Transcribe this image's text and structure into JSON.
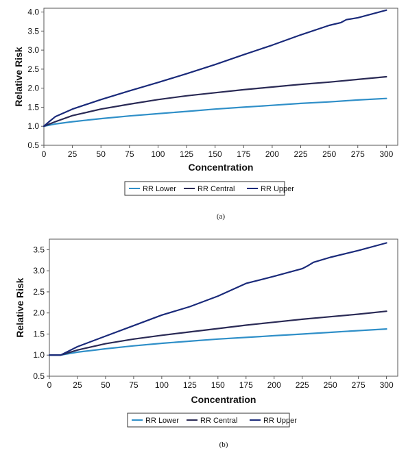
{
  "chart_data": [
    {
      "type": "line",
      "caption": "(a)",
      "xlabel": "Concentration",
      "ylabel": "Relative Risk",
      "xlim": [
        0,
        310
      ],
      "ylim": [
        0.5,
        4.1
      ],
      "xticks": [
        0,
        25,
        50,
        75,
        100,
        125,
        150,
        175,
        200,
        225,
        250,
        275,
        300
      ],
      "yticks": [
        "0.5",
        "1.0",
        "1.5",
        "2.0",
        "2.5",
        "3.0",
        "3.5",
        "4.0"
      ],
      "grid": false,
      "legend_position": "bottom",
      "series": [
        {
          "name": "RR Lower",
          "color": "#2f8fc8",
          "x": [
            0,
            10,
            25,
            50,
            75,
            100,
            125,
            150,
            175,
            200,
            225,
            250,
            275,
            300
          ],
          "y": [
            1.0,
            1.06,
            1.12,
            1.2,
            1.27,
            1.33,
            1.39,
            1.45,
            1.5,
            1.55,
            1.6,
            1.64,
            1.69,
            1.73
          ]
        },
        {
          "name": "RR Central",
          "color": "#2a2a55",
          "x": [
            0,
            10,
            25,
            50,
            75,
            100,
            125,
            150,
            175,
            200,
            225,
            250,
            275,
            300
          ],
          "y": [
            1.0,
            1.12,
            1.28,
            1.45,
            1.58,
            1.7,
            1.8,
            1.88,
            1.96,
            2.03,
            2.1,
            2.16,
            2.23,
            2.3
          ]
        },
        {
          "name": "RR Upper",
          "color": "#1a2a7a",
          "x": [
            0,
            5,
            10,
            25,
            50,
            75,
            100,
            125,
            150,
            175,
            200,
            225,
            250,
            260,
            265,
            275,
            300
          ],
          "y": [
            1.0,
            1.13,
            1.25,
            1.45,
            1.7,
            1.93,
            2.15,
            2.38,
            2.62,
            2.88,
            3.13,
            3.4,
            3.65,
            3.72,
            3.8,
            3.85,
            4.05
          ]
        }
      ]
    },
    {
      "type": "line",
      "caption": "(b)",
      "xlabel": "Concentration",
      "ylabel": "Relative Risk",
      "xlim": [
        0,
        310
      ],
      "ylim": [
        0.5,
        3.75
      ],
      "xticks": [
        0,
        25,
        50,
        75,
        100,
        125,
        150,
        175,
        200,
        225,
        250,
        275,
        300
      ],
      "yticks": [
        "0.5",
        "1.0",
        "1.5",
        "2.0",
        "2.5",
        "3.0",
        "3.5"
      ],
      "grid": false,
      "legend_position": "bottom",
      "series": [
        {
          "name": "RR Lower",
          "color": "#2f8fc8",
          "x": [
            0,
            10,
            25,
            50,
            75,
            100,
            125,
            150,
            175,
            200,
            225,
            250,
            275,
            300
          ],
          "y": [
            1.0,
            1.0,
            1.07,
            1.15,
            1.22,
            1.28,
            1.33,
            1.38,
            1.42,
            1.46,
            1.5,
            1.54,
            1.58,
            1.62
          ]
        },
        {
          "name": "RR Central",
          "color": "#2a2a55",
          "x": [
            0,
            10,
            25,
            50,
            75,
            100,
            125,
            150,
            175,
            200,
            225,
            250,
            275,
            300
          ],
          "y": [
            1.0,
            1.0,
            1.12,
            1.27,
            1.38,
            1.47,
            1.55,
            1.63,
            1.71,
            1.78,
            1.85,
            1.91,
            1.97,
            2.04
          ]
        },
        {
          "name": "RR Upper",
          "color": "#1a2a7a",
          "x": [
            0,
            10,
            25,
            50,
            75,
            100,
            125,
            150,
            175,
            200,
            225,
            230,
            235,
            250,
            275,
            300
          ],
          "y": [
            1.0,
            1.0,
            1.2,
            1.45,
            1.7,
            1.95,
            2.15,
            2.4,
            2.7,
            2.87,
            3.05,
            3.12,
            3.2,
            3.32,
            3.48,
            3.66
          ]
        }
      ]
    }
  ]
}
